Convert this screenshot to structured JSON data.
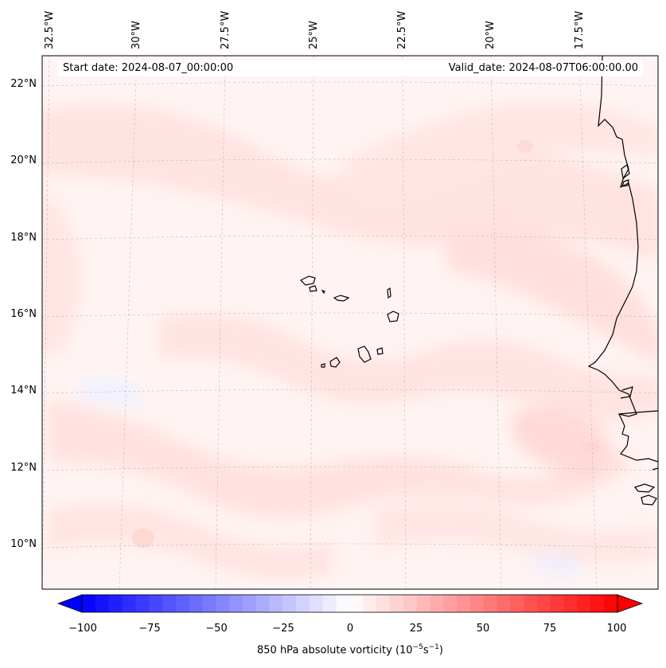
{
  "map": {
    "start_date": "Start date: 2024-08-07_00:00:00",
    "valid_date": "Valid_date: 2024-08-07T06:00:00.00",
    "lon_labels": [
      "32.5°W",
      "30°W",
      "27.5°W",
      "25°W",
      "22.5°W",
      "20°W",
      "17.5°W"
    ],
    "lat_labels": [
      "22°N",
      "20°N",
      "18°N",
      "16°N",
      "14°N",
      "12°N",
      "10°N"
    ],
    "field": "850 hPa absolute vorticity",
    "field_range": [
      -100,
      100
    ],
    "colormap": "bwr",
    "gridlines": true,
    "coastline_color": "#000000"
  },
  "colorbar": {
    "ticks": [
      "−100",
      "−75",
      "−50",
      "−25",
      "0",
      "25",
      "50",
      "75",
      "100"
    ],
    "label_prefix": "850 hPa absolute vorticity (10",
    "label_exp1": "−5",
    "label_mid": "s",
    "label_exp2": "−1",
    "label_suffix": ")",
    "min_color": "#0000ff",
    "mid_color": "#ffffff",
    "max_color": "#ff0000"
  }
}
